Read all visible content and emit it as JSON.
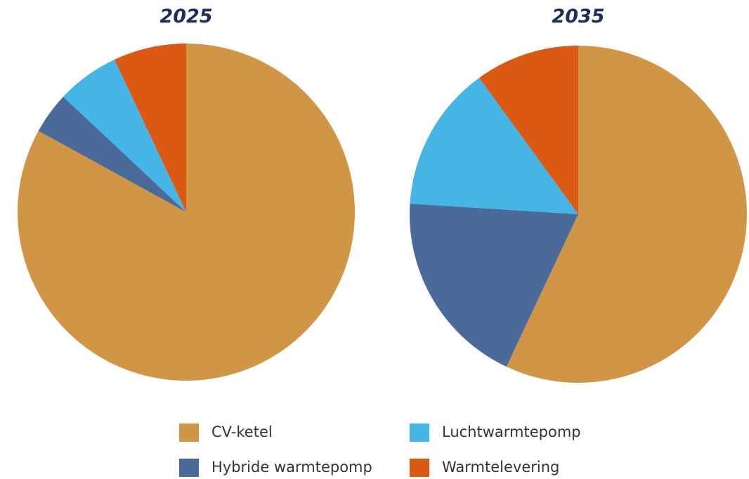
{
  "chart_data": [
    {
      "type": "pie",
      "title": "2025",
      "categories": [
        "CV-ketel",
        "Hybride warmtepomp",
        "Luchtwarmtepomp",
        "Warmtelevering"
      ],
      "values": [
        83,
        4,
        6,
        7
      ],
      "colors": [
        "#d09645",
        "#4a6b9a",
        "#44b5e5",
        "#db5a13"
      ]
    },
    {
      "type": "pie",
      "title": "2035",
      "categories": [
        "CV-ketel",
        "Hybride warmtepomp",
        "Luchtwarmtepomp",
        "Warmtelevering"
      ],
      "values": [
        57,
        19,
        14,
        10
      ],
      "colors": [
        "#d09645",
        "#4a6b9a",
        "#44b5e5",
        "#db5a13"
      ]
    }
  ]
}
